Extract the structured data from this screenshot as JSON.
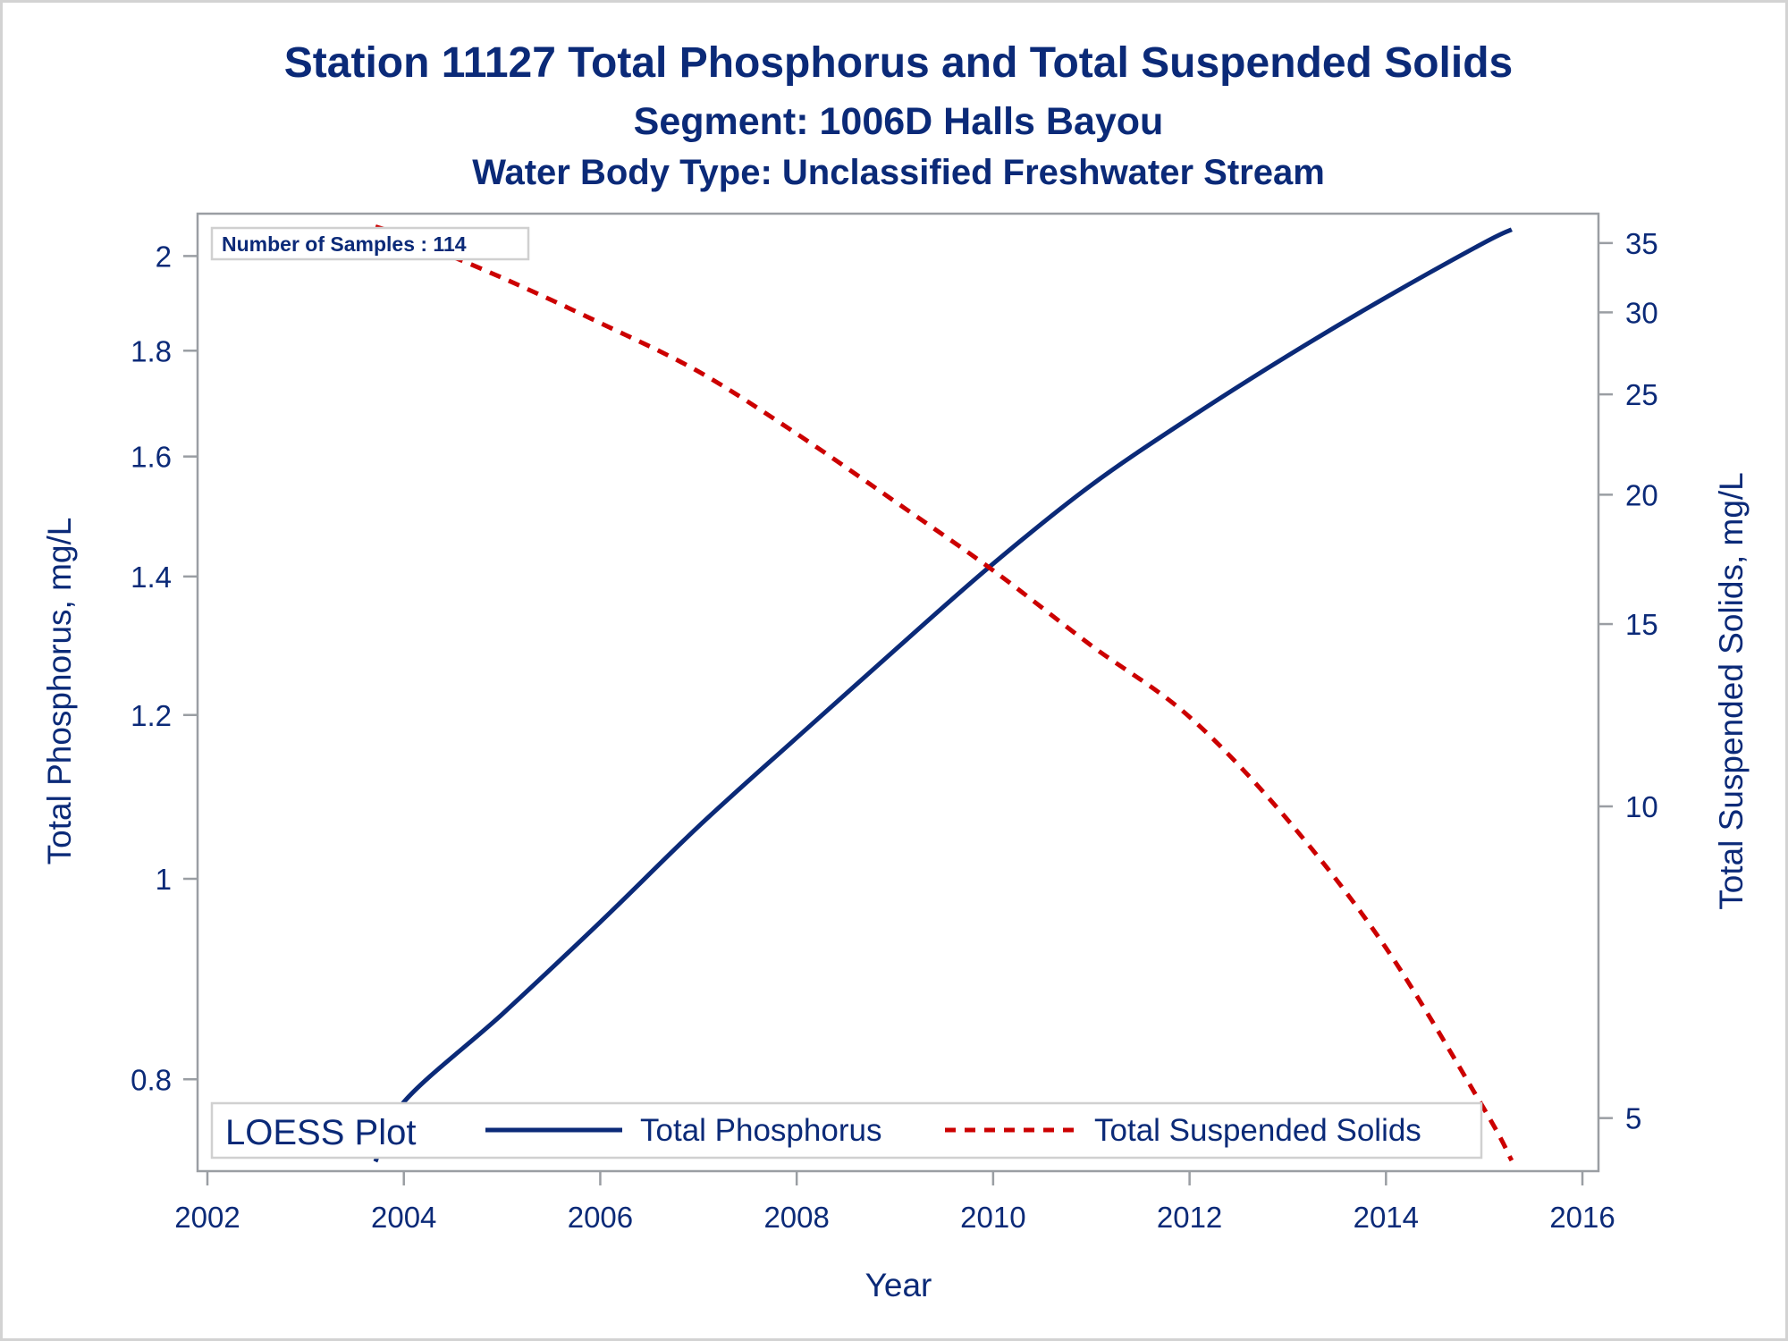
{
  "titles": {
    "line1": "Station 11127  Total Phosphorus and Total Suspended Solids",
    "line2": "Segment: 1006D  Halls Bayou",
    "line3": "Water Body Type: Unclassified Freshwater Stream"
  },
  "annotation": {
    "samples_text": "Number of Samples : 114"
  },
  "legend": {
    "title": "LOESS Plot",
    "items": [
      {
        "label": "Total Phosphorus",
        "style": "solid",
        "color": "#0b2a78"
      },
      {
        "label": "Total Suspended Solids",
        "style": "dashed",
        "color": "#cc0000"
      }
    ],
    "placement": "bottom-inside"
  },
  "colors": {
    "text": "#0b2a78",
    "phosphorus": "#0b2a78",
    "tss": "#cc0000",
    "axis": "#9a9ea3",
    "box": "#d0d0d0"
  },
  "chart_data": {
    "type": "line",
    "title": "Station 11127  Total Phosphorus and Total Suspended Solids",
    "subtitle": [
      "Segment: 1006D  Halls Bayou",
      "Water Body Type: Unclassified Freshwater Stream"
    ],
    "xlabel": "Year",
    "ylabel": "Total Phosphorus, mg/L",
    "y2label": "Total Suspended Solids, mg/L",
    "xlim": [
      2002,
      2016
    ],
    "x_ticks": [
      "2002",
      "2004",
      "2006",
      "2008",
      "2010",
      "2012",
      "2014",
      "2016"
    ],
    "x_tick_values": [
      2002,
      2004,
      2006,
      2008,
      2010,
      2012,
      2014,
      2016
    ],
    "y_scale": "log",
    "ylim": [
      0.73,
      2.08
    ],
    "y_ticks": [
      "0.8",
      "1",
      "1.2",
      "1.4",
      "1.6",
      "1.8",
      "2"
    ],
    "y_tick_values": [
      0.8,
      1,
      1.2,
      1.4,
      1.6,
      1.8,
      2
    ],
    "y2_scale": "log",
    "y2lim": [
      4.5,
      36.5
    ],
    "y2_ticks": [
      "5",
      "10",
      "15",
      "20",
      "25",
      "30",
      "35"
    ],
    "y2_tick_values": [
      5,
      10,
      15,
      20,
      25,
      30,
      35
    ],
    "grid": false,
    "series": [
      {
        "name": "Total Phosphorus",
        "axis": "left",
        "x": [
          2003.71,
          2004,
          2005,
          2006,
          2007,
          2008,
          2009,
          2010,
          2011,
          2012,
          2013,
          2014,
          2015,
          2015.28
        ],
        "y": [
          0.73,
          0.78,
          0.86,
          0.953,
          1.06,
          1.17,
          1.29,
          1.42,
          1.55,
          1.67,
          1.79,
          1.91,
          2.03,
          2.06
        ]
      },
      {
        "name": "Total Suspended Solids",
        "axis": "right",
        "x": [
          2003.71,
          2004,
          2005,
          2006,
          2007,
          2008,
          2009,
          2010,
          2011,
          2012,
          2013,
          2014,
          2015,
          2015.28
        ],
        "y": [
          36.3,
          35.5,
          32.4,
          29.3,
          26.3,
          22.9,
          19.7,
          16.9,
          14.3,
          12.2,
          9.7,
          7.3,
          5.1,
          4.55
        ]
      }
    ]
  }
}
